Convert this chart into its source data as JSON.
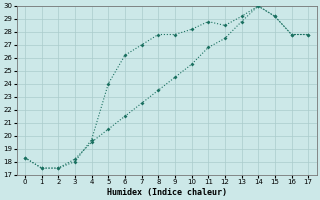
{
  "xlabel": "Humidex (Indice chaleur)",
  "line1_x": [
    0,
    1,
    2,
    3,
    4,
    5,
    6,
    7,
    8,
    9,
    10,
    11,
    12,
    13,
    14,
    15,
    16,
    17
  ],
  "line1_y": [
    18.3,
    17.5,
    17.5,
    18.0,
    19.7,
    24.0,
    26.2,
    27.0,
    27.8,
    27.8,
    28.2,
    28.8,
    28.5,
    29.2,
    30.0,
    29.2,
    27.8,
    27.8
  ],
  "line2_x": [
    0,
    1,
    2,
    3,
    4,
    5,
    6,
    7,
    8,
    9,
    10,
    11,
    12,
    13,
    14,
    15,
    16,
    17
  ],
  "line2_y": [
    18.3,
    17.5,
    17.5,
    18.2,
    19.5,
    20.5,
    21.5,
    22.5,
    23.5,
    24.5,
    25.5,
    26.8,
    27.5,
    28.8,
    30.0,
    29.2,
    27.8,
    27.8
  ],
  "line_color": "#1a7060",
  "bg_color": "#cce8e8",
  "grid_color": "#aacccc",
  "xlim": [
    0,
    17
  ],
  "ylim": [
    17,
    30
  ],
  "xticks": [
    0,
    1,
    2,
    3,
    4,
    5,
    6,
    7,
    8,
    9,
    10,
    11,
    12,
    13,
    14,
    15,
    16,
    17
  ],
  "yticks": [
    17,
    18,
    19,
    20,
    21,
    22,
    23,
    24,
    25,
    26,
    27,
    28,
    29,
    30
  ]
}
